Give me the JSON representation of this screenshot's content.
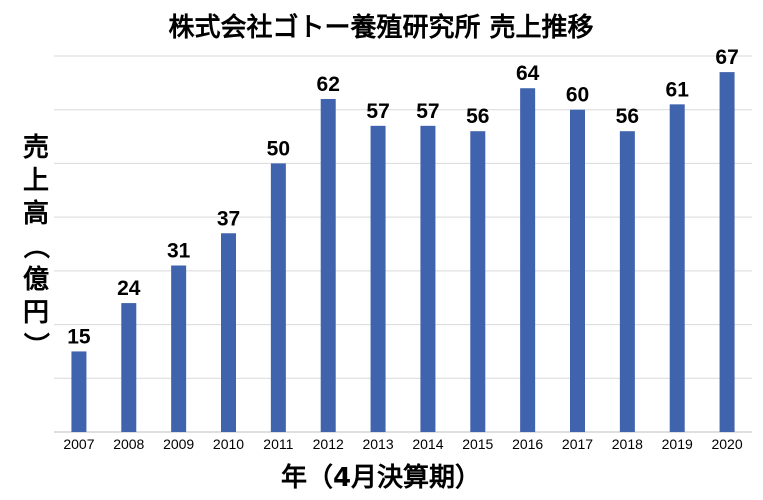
{
  "chart_data": {
    "type": "bar",
    "title": "株式会社ゴトー養殖研究所 売上推移",
    "xlabel": "年（4月決算期）",
    "ylabel": [
      "売",
      "上",
      "高",
      "（",
      "億",
      "円",
      "）"
    ],
    "categories": [
      "2007",
      "2008",
      "2009",
      "2010",
      "2011",
      "2012",
      "2013",
      "2014",
      "2015",
      "2016",
      "2017",
      "2018",
      "2019",
      "2020"
    ],
    "values": [
      15,
      24,
      31,
      37,
      50,
      62,
      57,
      57,
      56,
      64,
      60,
      56,
      61,
      67
    ],
    "ylim": [
      0,
      70
    ],
    "grid": true,
    "data_labels": true,
    "bar_color": "#4063ad"
  }
}
